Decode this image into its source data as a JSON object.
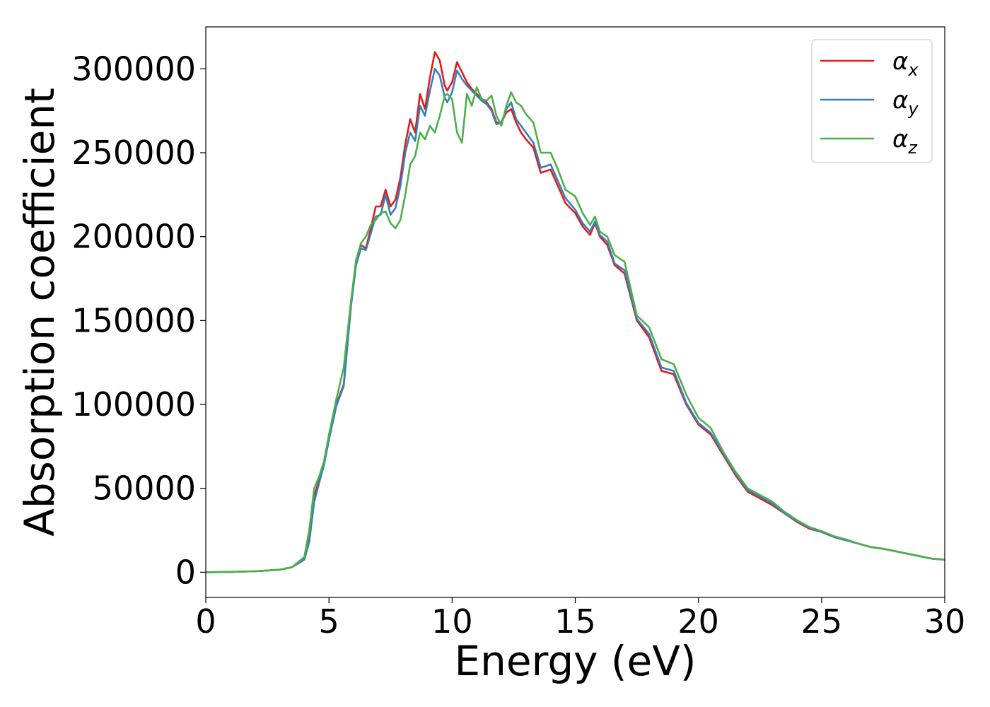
{
  "chart_data": {
    "type": "line",
    "title": "",
    "xlabel": "Energy (eV)",
    "ylabel": "Absorption coefficient",
    "xlim": [
      0,
      30
    ],
    "ylim": [
      -15000,
      325000
    ],
    "xticks": [
      0,
      5,
      10,
      15,
      20,
      25,
      30
    ],
    "yticks": [
      0,
      50000,
      100000,
      150000,
      200000,
      250000,
      300000
    ],
    "grid": false,
    "legend_position": "top-right",
    "series": [
      {
        "name": "α_x",
        "legend_base": "α",
        "legend_sub": "x",
        "color": "#e41a1c",
        "x": [
          0,
          1,
          2,
          3,
          3.5,
          4,
          4.2,
          4.4,
          4.6,
          4.8,
          5,
          5.3,
          5.6,
          5.9,
          6.1,
          6.3,
          6.5,
          6.7,
          6.9,
          7.1,
          7.3,
          7.5,
          7.7,
          7.9,
          8.1,
          8.3,
          8.5,
          8.7,
          8.9,
          9.1,
          9.3,
          9.5,
          9.7,
          9.8,
          10,
          10.2,
          10.4,
          10.6,
          10.8,
          11,
          11.2,
          11.4,
          11.6,
          11.8,
          12,
          12.2,
          12.4,
          12.6,
          12.8,
          13,
          13.3,
          13.6,
          14,
          14.3,
          14.6,
          15,
          15.3,
          15.6,
          15.8,
          16,
          16.3,
          16.6,
          17,
          17.5,
          18,
          18.5,
          19,
          19.5,
          20,
          20.5,
          21,
          21.5,
          22,
          22.5,
          23,
          23.5,
          24,
          24.5,
          25,
          25.5,
          26,
          26.5,
          27,
          27.5,
          28,
          28.5,
          29,
          29.5,
          30
        ],
        "values": [
          0,
          200,
          600,
          1500,
          3000,
          8000,
          20000,
          45000,
          55000,
          65000,
          80000,
          100000,
          112000,
          160000,
          185000,
          195000,
          193000,
          205000,
          218000,
          218000,
          228000,
          218000,
          222000,
          235000,
          255000,
          270000,
          262000,
          285000,
          276000,
          295000,
          310000,
          305000,
          290000,
          287000,
          292000,
          304000,
          298000,
          292000,
          288000,
          285000,
          282000,
          280000,
          276000,
          268000,
          268000,
          274000,
          276000,
          268000,
          262000,
          258000,
          253000,
          238000,
          240000,
          230000,
          220000,
          214000,
          206000,
          201000,
          208000,
          200000,
          195000,
          183000,
          178000,
          150000,
          140000,
          120000,
          118000,
          100000,
          88000,
          82000,
          70000,
          58000,
          48000,
          44000,
          40000,
          35000,
          30000,
          26000,
          24000,
          21000,
          19000,
          17000,
          15000,
          14000,
          12500,
          11000,
          9500,
          8000,
          7500
        ]
      },
      {
        "name": "α_y",
        "legend_base": "α",
        "legend_sub": "y",
        "color": "#377eb8",
        "x": [
          0,
          1,
          2,
          3,
          3.5,
          4,
          4.2,
          4.4,
          4.6,
          4.8,
          5,
          5.3,
          5.6,
          5.9,
          6.1,
          6.3,
          6.5,
          6.7,
          6.9,
          7.1,
          7.3,
          7.5,
          7.7,
          7.9,
          8.1,
          8.3,
          8.5,
          8.7,
          8.9,
          9.1,
          9.3,
          9.5,
          9.7,
          9.8,
          10,
          10.2,
          10.4,
          10.6,
          10.8,
          11,
          11.2,
          11.4,
          11.6,
          11.8,
          12,
          12.2,
          12.4,
          12.6,
          12.8,
          13,
          13.3,
          13.6,
          14,
          14.3,
          14.6,
          15,
          15.3,
          15.6,
          15.8,
          16,
          16.3,
          16.6,
          17,
          17.5,
          18,
          18.5,
          19,
          19.5,
          20,
          20.5,
          21,
          21.5,
          22,
          22.5,
          23,
          23.5,
          24,
          24.5,
          25,
          25.5,
          26,
          26.5,
          27,
          27.5,
          28,
          28.5,
          29,
          29.5,
          30
        ],
        "values": [
          0,
          200,
          600,
          1500,
          3000,
          7500,
          18000,
          42000,
          53000,
          64000,
          79000,
          99000,
          111000,
          159000,
          183000,
          193000,
          192000,
          202000,
          212000,
          213000,
          225000,
          213000,
          217000,
          230000,
          250000,
          262000,
          257000,
          278000,
          272000,
          287000,
          300000,
          296000,
          283000,
          280000,
          286000,
          299000,
          294000,
          290000,
          287000,
          284000,
          281000,
          279000,
          275000,
          267000,
          268000,
          276000,
          280000,
          270000,
          266000,
          262000,
          256000,
          241000,
          243000,
          233000,
          223000,
          216000,
          208000,
          203000,
          209000,
          201000,
          197000,
          184000,
          180000,
          151000,
          142000,
          122000,
          120000,
          101000,
          89000,
          83000,
          71000,
          59000,
          49000,
          45000,
          41000,
          35000,
          30500,
          26500,
          24000,
          21000,
          19000,
          17000,
          15000,
          14000,
          12500,
          11000,
          9500,
          8000,
          7500
        ]
      },
      {
        "name": "α_z",
        "legend_base": "α",
        "legend_sub": "z",
        "color": "#4daf4a",
        "x": [
          0,
          1,
          2,
          3,
          3.5,
          4,
          4.2,
          4.4,
          4.6,
          4.8,
          5,
          5.3,
          5.6,
          5.9,
          6.1,
          6.3,
          6.5,
          6.7,
          6.9,
          7.1,
          7.3,
          7.5,
          7.7,
          7.9,
          8.1,
          8.3,
          8.5,
          8.7,
          8.9,
          9.1,
          9.3,
          9.5,
          9.7,
          9.8,
          10,
          10.2,
          10.4,
          10.6,
          10.8,
          11,
          11.2,
          11.4,
          11.6,
          11.8,
          12,
          12.2,
          12.4,
          12.6,
          12.8,
          13,
          13.3,
          13.6,
          14,
          14.3,
          14.6,
          15,
          15.3,
          15.6,
          15.8,
          16,
          16.3,
          16.6,
          17,
          17.5,
          18,
          18.5,
          19,
          19.5,
          20,
          20.5,
          21,
          21.5,
          22,
          22.5,
          23,
          23.5,
          24,
          24.5,
          25,
          25.5,
          26,
          26.5,
          27,
          27.5,
          28,
          28.5,
          29,
          29.5,
          30
        ],
        "values": [
          0,
          200,
          600,
          1500,
          3000,
          9000,
          25000,
          50000,
          57000,
          66000,
          82000,
          103000,
          122000,
          162000,
          186000,
          196000,
          200000,
          207000,
          210000,
          214000,
          215000,
          208000,
          205000,
          210000,
          225000,
          243000,
          248000,
          262000,
          258000,
          266000,
          262000,
          272000,
          284000,
          285000,
          282000,
          262000,
          256000,
          285000,
          278000,
          289000,
          282000,
          281000,
          284000,
          272000,
          266000,
          278000,
          286000,
          280000,
          278000,
          273000,
          268000,
          250000,
          250000,
          240000,
          228000,
          224000,
          214000,
          207000,
          212000,
          203000,
          200000,
          189000,
          185000,
          153000,
          146000,
          127000,
          124000,
          106000,
          92000,
          86000,
          72000,
          60000,
          50000,
          46000,
          42000,
          36000,
          31000,
          27000,
          24500,
          21500,
          19500,
          17000,
          15000,
          14000,
          12500,
          11000,
          9500,
          8000,
          7500
        ]
      }
    ]
  }
}
